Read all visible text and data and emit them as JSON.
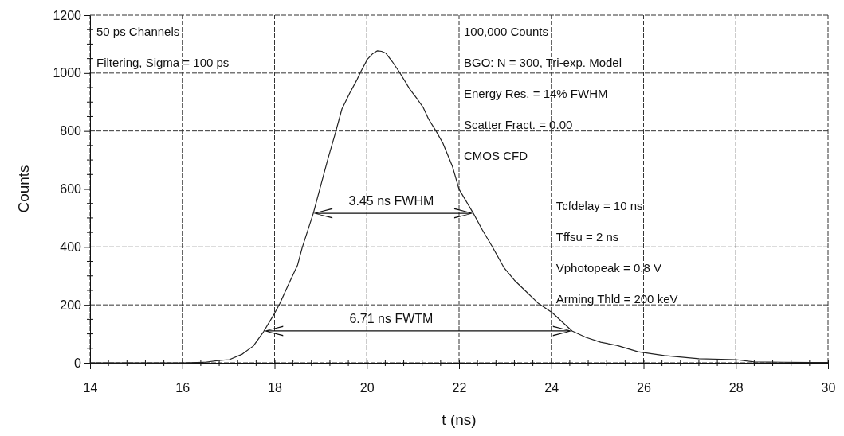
{
  "chart_data": {
    "type": "line",
    "xlabel": "t (ns)",
    "ylabel": "Counts",
    "xlim": [
      14,
      30
    ],
    "xticks": [
      14,
      16,
      18,
      20,
      22,
      24,
      26,
      28,
      30
    ],
    "ylim": [
      0,
      1200
    ],
    "yticks": [
      0,
      200,
      400,
      600,
      800,
      1000,
      1200
    ],
    "grid": true,
    "marker": "none",
    "line_style": "solid",
    "series": [
      {
        "color": "#222222",
        "x": [
          14,
          15,
          16,
          16.5,
          16.78,
          17.02,
          17.3,
          17.54,
          17.76,
          17.99,
          18.11,
          18.3,
          18.5,
          18.6,
          18.84,
          18.98,
          19.15,
          19.32,
          19.46,
          19.63,
          19.79,
          19.87,
          20.01,
          20.12,
          20.23,
          20.32,
          20.41,
          20.55,
          20.7,
          20.93,
          21.1,
          21.22,
          21.34,
          21.5,
          21.65,
          21.86,
          22.0,
          22.31,
          22.5,
          22.72,
          22.98,
          23.2,
          23.46,
          23.72,
          24.02,
          24.45,
          24.75,
          25.07,
          25.42,
          25.88,
          26.45,
          27.2,
          28.0,
          28.4,
          29.0,
          29.9,
          30
        ],
        "values": [
          0,
          0,
          0,
          2,
          8,
          11,
          30,
          58,
          107,
          168,
          203,
          270,
          338,
          398,
          516,
          599,
          700,
          794,
          876,
          931,
          978,
          1005,
          1047,
          1066,
          1077,
          1075,
          1069,
          1040,
          1005,
          945,
          909,
          882,
          841,
          800,
          758,
          676,
          599,
          516,
          460,
          401,
          327,
          285,
          245,
          205,
          173,
          110,
          88,
          71,
          60,
          38,
          25,
          14,
          11,
          3,
          2,
          1,
          1
        ]
      }
    ],
    "annotations": [
      "50 ps Channels",
      "Filtering, Sigma = 100 ps",
      "100,000 Counts",
      "BGO: N = 300, Tri-exp. Model",
      "Energy Res. = 14% FWHM",
      "Scatter Fract. = 0.00",
      "CMOS CFD",
      "Tcfdelay = 10 ns",
      "Tffsu = 2 ns",
      "Vphotopeak = 0.8 V",
      "Arming Thld = 200 keV",
      "3.45 ns FWHM",
      "6.71 ns FWTM"
    ]
  }
}
